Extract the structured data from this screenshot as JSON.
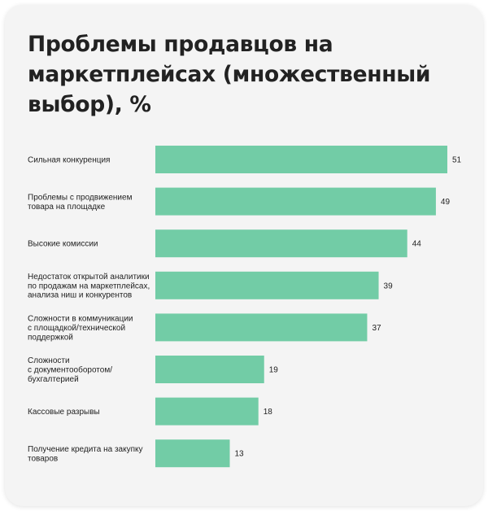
{
  "chart_data": {
    "type": "bar",
    "orientation": "horizontal",
    "title": "Проблемы продавцов на маркетплейсах (множественный выбор), %",
    "xlabel": "",
    "ylabel": "",
    "xlim": [
      0,
      51
    ],
    "grid": false,
    "bar_color": "#72cca6",
    "categories": [
      [
        "Сильная конкуренция"
      ],
      [
        "Проблемы с продвижением",
        "товара на площадке"
      ],
      [
        "Высокие комиссии"
      ],
      [
        "Недостаток открытой аналитики",
        "по продажам на маркетплейсах,",
        "анализа ниш и конкурентов"
      ],
      [
        "Сложности в коммуникации",
        "с площадкой/технической",
        "поддержкой"
      ],
      [
        "Сложности",
        "с документооборотом/",
        "бухгалтерией"
      ],
      [
        "Кассовые разрывы"
      ],
      [
        "Получение кредита на закупку",
        "товаров"
      ]
    ],
    "values": [
      51,
      49,
      44,
      39,
      37,
      19,
      18,
      13
    ]
  }
}
